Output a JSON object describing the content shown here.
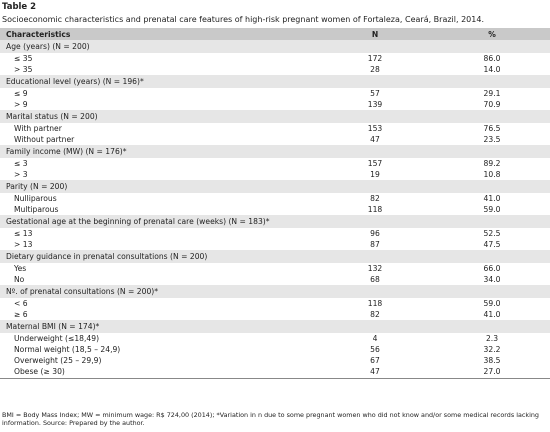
{
  "header": {
    "title": "Table 2",
    "caption": "Socioeconomic characteristics and prenatal care features of high-risk pregnant women of Fortaleza, Ceará, Brazil, 2014."
  },
  "table": {
    "columns": [
      "Characteristics",
      "N",
      "%"
    ],
    "groups": [
      {
        "label": "Age (years) (N = 200)",
        "rows": [
          [
            "≤ 35",
            "172",
            "86.0"
          ],
          [
            "> 35",
            "28",
            "14.0"
          ]
        ]
      },
      {
        "label": "Educational level (years) (N = 196)*",
        "rows": [
          [
            "≤ 9",
            "57",
            "29.1"
          ],
          [
            "> 9",
            "139",
            "70.9"
          ]
        ]
      },
      {
        "label": "Marital status (N = 200)",
        "rows": [
          [
            "With partner",
            "153",
            "76.5"
          ],
          [
            "Without partner",
            "47",
            "23.5"
          ]
        ]
      },
      {
        "label": "Family income (MW) (N = 176)*",
        "rows": [
          [
            "≤ 3",
            "157",
            "89.2"
          ],
          [
            "> 3",
            "19",
            "10.8"
          ]
        ]
      },
      {
        "label": "Parity (N = 200)",
        "rows": [
          [
            "Nulliparous",
            "82",
            "41.0"
          ],
          [
            "Multiparous",
            "118",
            "59.0"
          ]
        ]
      },
      {
        "label": "Gestational age at the beginning of prenatal care (weeks) (N = 183)*",
        "rows": [
          [
            "≤ 13",
            "96",
            "52.5"
          ],
          [
            "> 13",
            "87",
            "47.5"
          ]
        ]
      },
      {
        "label": "Dietary guidance in prenatal consultations (N = 200)",
        "rows": [
          [
            "Yes",
            "132",
            "66.0"
          ],
          [
            "No",
            "68",
            "34.0"
          ]
        ]
      },
      {
        "label": "Nº. of prenatal consultations (N = 200)*",
        "rows": [
          [
            "< 6",
            "118",
            "59.0"
          ],
          [
            "≥ 6",
            "82",
            "41.0"
          ]
        ]
      },
      {
        "label": "Maternal BMI (N = 174)*",
        "rows": [
          [
            "Underweight (≤18,49)",
            "4",
            "2.3"
          ],
          [
            "Normal weight (18,5 – 24,9)",
            "56",
            "32.2"
          ],
          [
            "Overweight (25 – 29,9)",
            "67",
            "38.5"
          ],
          [
            "Obese (≥ 30)",
            "47",
            "27.0"
          ]
        ]
      }
    ]
  },
  "footer": {
    "note": "BMI = Body Mass Index; MW = minimum wage: R$ 724,00 (2014); *Variation in n due to some pregnant women who did not know and/or some medical records lacking information. Source: Prepared by the author."
  }
}
